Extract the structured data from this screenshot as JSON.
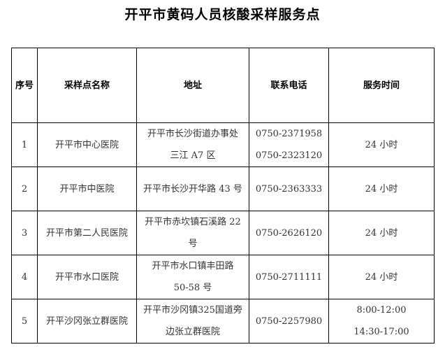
{
  "title": "开平市黄码人员核酸采样服务点",
  "headers": [
    "序号",
    "采样点名称",
    "地址",
    "联系电话",
    "服务时间"
  ],
  "rows": [
    {
      "no": "1",
      "name": "开平市中心医院",
      "address": [
        "开平市长沙街道办事处",
        "三江 A7 区"
      ],
      "phone": [
        "0750-2371958",
        "0750-2323120"
      ],
      "hours": [
        "24 小时"
      ]
    },
    {
      "no": "2",
      "name": "开平市中医院",
      "address": [
        "开平市长沙开华路 43 号"
      ],
      "phone": [
        "0750-2363333"
      ],
      "hours": [
        "24 小时"
      ]
    },
    {
      "no": "3",
      "name": "开平市第二人民医院",
      "address": [
        "开平市赤坎镇石溪路 22",
        "号"
      ],
      "phone": [
        "0750-2626120"
      ],
      "hours": [
        "24 小时"
      ]
    },
    {
      "no": "4",
      "name": "开平市水口医院",
      "address": [
        "开平市水口镇丰田路",
        "50-58 号"
      ],
      "phone": [
        "0750-2711111"
      ],
      "hours": [
        "24 小时"
      ]
    },
    {
      "no": "5",
      "name": "开平沙冈张立群医院",
      "address": [
        "开平市沙冈镇325国道旁",
        "边张立群医院"
      ],
      "phone": [
        "0750-2257980"
      ],
      "hours": [
        "8:00-12:00",
        "14:30-17:00"
      ]
    }
  ]
}
